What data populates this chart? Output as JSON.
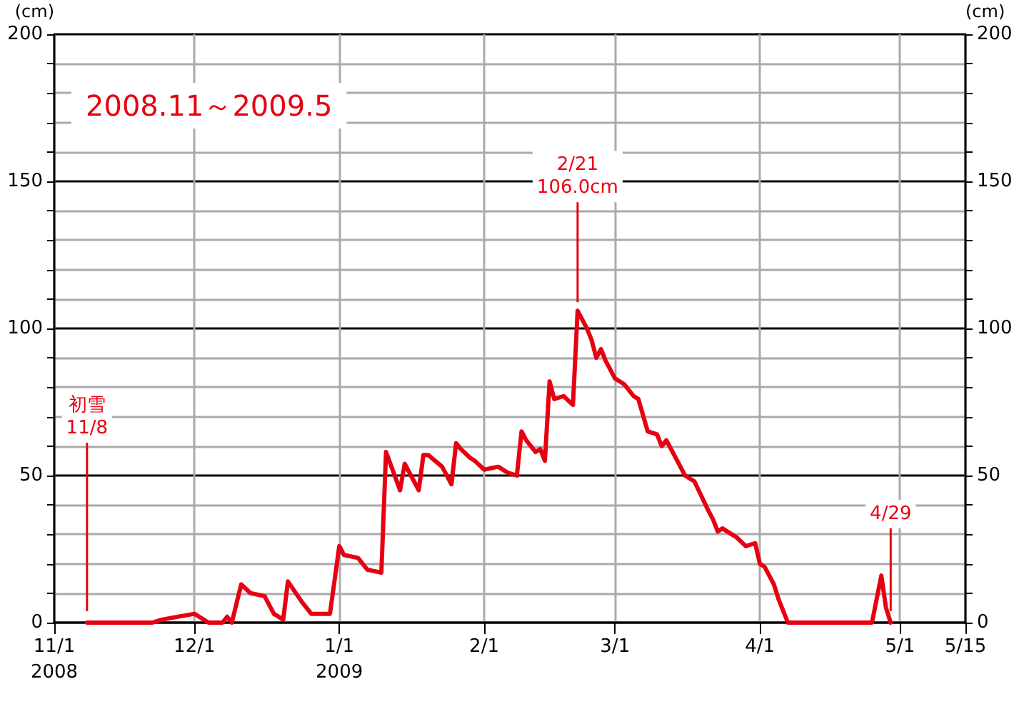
{
  "chart_data": {
    "type": "line",
    "title": "2008.11～2009.5",
    "ylabel": "(cm)",
    "y2label": "(cm)",
    "x": [
      "2008-11-08",
      "2008-11-22",
      "2008-11-24",
      "2008-12-01",
      "2008-12-04",
      "2008-12-07",
      "2008-12-08",
      "2008-12-09",
      "2008-12-11",
      "2008-12-13",
      "2008-12-16",
      "2008-12-18",
      "2008-12-20",
      "2008-12-21",
      "2008-12-24",
      "2008-12-26",
      "2008-12-30",
      "2009-01-01",
      "2009-01-02",
      "2009-01-05",
      "2009-01-07",
      "2009-01-10",
      "2009-01-11",
      "2009-01-14",
      "2009-01-15",
      "2009-01-18",
      "2009-01-19",
      "2009-01-20",
      "2009-01-23",
      "2009-01-25",
      "2009-01-26",
      "2009-01-27",
      "2009-01-29",
      "2009-01-30",
      "2009-02-01",
      "2009-02-04",
      "2009-02-06",
      "2009-02-08",
      "2009-02-09",
      "2009-02-10",
      "2009-02-12",
      "2009-02-13",
      "2009-02-14",
      "2009-02-15",
      "2009-02-16",
      "2009-02-18",
      "2009-02-20",
      "2009-02-21",
      "2009-02-23",
      "2009-02-24",
      "2009-02-25",
      "2009-02-26",
      "2009-02-27",
      "2009-03-01",
      "2009-03-03",
      "2009-03-05",
      "2009-03-06",
      "2009-03-08",
      "2009-03-10",
      "2009-03-11",
      "2009-03-12",
      "2009-03-15",
      "2009-03-16",
      "2009-03-18",
      "2009-03-21",
      "2009-03-22",
      "2009-03-23",
      "2009-03-24",
      "2009-03-26",
      "2009-03-27",
      "2009-03-29",
      "2009-03-31",
      "2009-04-01",
      "2009-04-02",
      "2009-04-04",
      "2009-04-05",
      "2009-04-07",
      "2009-04-25",
      "2009-04-27",
      "2009-04-28",
      "2009-04-29"
    ],
    "series": [
      {
        "color": "#e60012",
        "values": [
          0,
          0,
          1,
          3,
          0,
          0,
          2,
          0,
          13,
          10,
          9,
          3,
          1,
          14,
          7,
          3,
          3,
          26,
          23,
          22,
          18,
          17,
          58,
          45,
          54,
          45,
          57,
          57,
          53,
          47,
          61,
          59,
          56,
          55,
          52,
          53,
          51,
          50,
          65,
          62,
          58,
          59,
          55,
          82,
          76,
          77,
          74,
          106.0,
          100,
          96,
          90,
          93,
          89,
          83,
          81,
          77,
          76,
          65,
          64,
          60,
          62,
          53,
          50,
          48,
          38,
          35,
          31,
          32,
          30,
          29,
          26,
          27,
          20,
          19,
          13,
          8,
          0,
          0,
          16,
          5,
          0
        ]
      }
    ],
    "xlim": [
      "2008-11-01",
      "2009-05-15"
    ],
    "xticks": [
      {
        "value": "2008-11-01",
        "label": "11/1\n2008"
      },
      {
        "value": "2008-12-01",
        "label": "12/1"
      },
      {
        "value": "2009-01-01",
        "label": "1/1\n2009"
      },
      {
        "value": "2009-02-01",
        "label": "2/1"
      },
      {
        "value": "2009-03-01",
        "label": "3/1"
      },
      {
        "value": "2009-04-01",
        "label": "4/1"
      },
      {
        "value": "2009-05-01",
        "label": "5/1"
      },
      {
        "value": "2009-05-15",
        "label": "5/15"
      }
    ],
    "ylim": [
      0,
      200
    ],
    "yticks": [
      0,
      {
        "value": 10,
        "label": null
      },
      {
        "value": 20,
        "label": null
      },
      {
        "value": 30,
        "label": null
      },
      {
        "value": 40,
        "label": null
      },
      50,
      {
        "value": 60,
        "label": null
      },
      {
        "value": 70,
        "label": null
      },
      {
        "value": 80,
        "label": null
      },
      {
        "value": 90,
        "label": null
      },
      100,
      {
        "value": 110,
        "label": null
      },
      {
        "value": 120,
        "label": null
      },
      {
        "value": 130,
        "label": null
      },
      {
        "value": 140,
        "label": null
      },
      150,
      {
        "value": 160,
        "label": null
      },
      {
        "value": 170,
        "label": null
      },
      {
        "value": 180,
        "label": null
      },
      {
        "value": 190,
        "label": null
      },
      200
    ],
    "y2lim": [
      0,
      200
    ],
    "y2ticks": [
      0,
      {
        "value": 10,
        "label": null
      },
      {
        "value": 20,
        "label": null
      },
      {
        "value": 30,
        "label": null
      },
      {
        "value": 40,
        "label": null
      },
      50,
      {
        "value": 60,
        "label": null
      },
      {
        "value": 70,
        "label": null
      },
      {
        "value": 80,
        "label": null
      },
      {
        "value": 90,
        "label": null
      },
      100,
      {
        "value": 110,
        "label": null
      },
      {
        "value": 120,
        "label": null
      },
      {
        "value": 130,
        "label": null
      },
      {
        "value": 140,
        "label": null
      },
      150,
      {
        "value": 160,
        "label": null
      },
      {
        "value": 170,
        "label": null
      },
      {
        "value": 180,
        "label": null
      },
      {
        "value": 190,
        "label": null
      },
      200
    ],
    "annotations": [
      {
        "text": "初雪\n11/8",
        "x": "2008-11-08",
        "y": 0
      },
      {
        "text": "2/21\n106.0cm",
        "x": "2009-02-21",
        "y": 106.0
      },
      {
        "text": "4/29",
        "x": "2009-04-29",
        "y": 0
      }
    ],
    "grid": true,
    "marker": "none"
  }
}
